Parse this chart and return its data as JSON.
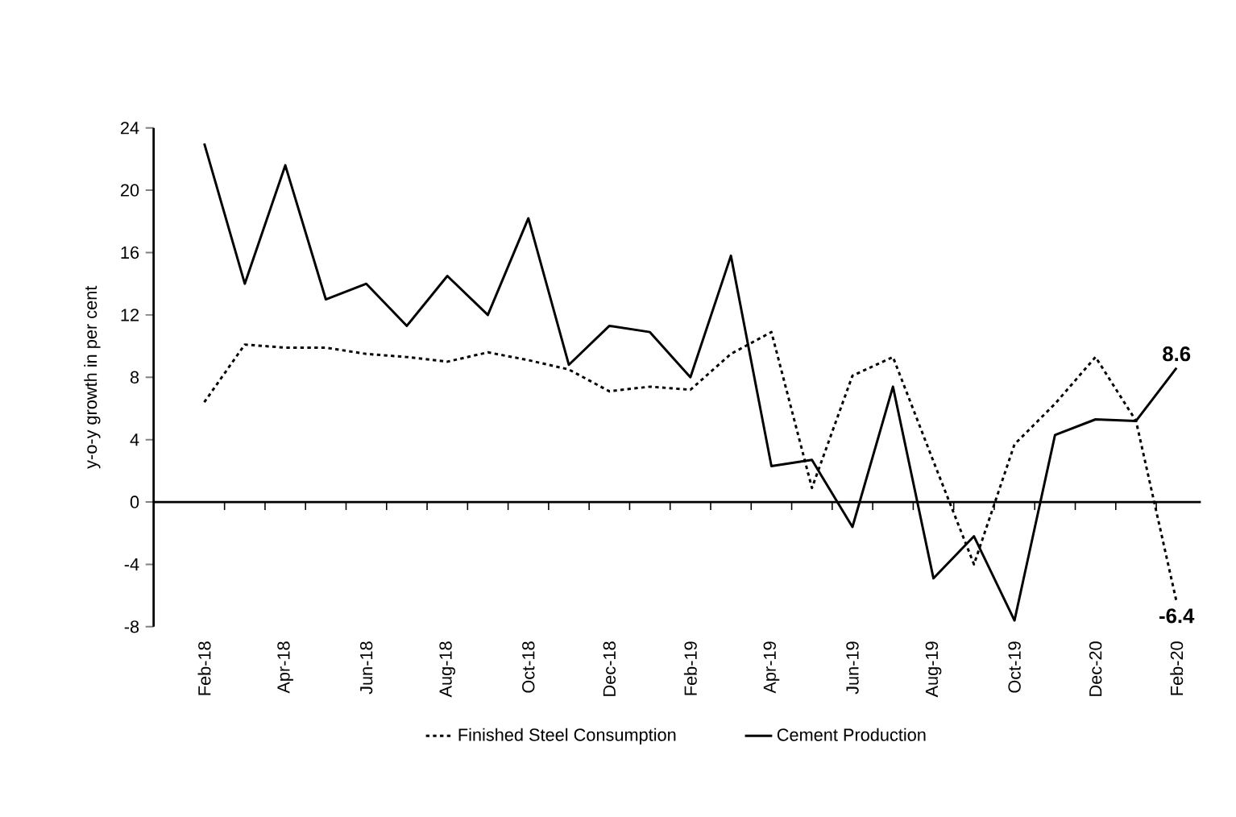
{
  "chart_data": {
    "type": "line",
    "ylabel": "y-o-y growth in per cent",
    "categories": [
      "Feb-18",
      null,
      "Apr-18",
      null,
      "Jun-18",
      null,
      "Aug-18",
      null,
      "Oct-18",
      null,
      "Dec-18",
      null,
      "Feb-19",
      null,
      "Apr-19",
      null,
      "Jun-19",
      null,
      "Aug-19",
      null,
      "Oct-19",
      null,
      "Dec-20",
      null,
      "Feb-20"
    ],
    "series": [
      {
        "name": "Finished Steel Consumption",
        "color": "#000000",
        "line_style": "dotted",
        "values": [
          6.4,
          10.1,
          9.9,
          9.9,
          9.5,
          9.3,
          9.0,
          9.6,
          9.1,
          8.5,
          7.1,
          7.4,
          7.2,
          9.5,
          10.9,
          0.9,
          8.1,
          9.3,
          2.6,
          -4.0,
          3.7,
          6.3,
          9.3,
          5.2,
          -6.4
        ]
      },
      {
        "name": "Cement Production",
        "color": "#000000",
        "line_style": "solid",
        "values": [
          23,
          14,
          21.6,
          13,
          14,
          11.3,
          14.5,
          12,
          18.2,
          8.8,
          11.3,
          10.9,
          8,
          15.8,
          2.3,
          2.7,
          -1.6,
          7.4,
          -4.9,
          -2.2,
          -7.6,
          4.3,
          5.3,
          5.2,
          8.6
        ]
      }
    ],
    "ylim": [
      -8,
      24
    ],
    "yticks": [
      -8,
      -4,
      0,
      4,
      8,
      12,
      16,
      20,
      24
    ],
    "legend": "bottom",
    "marker": "none",
    "annotations": [
      {
        "text": "8.6",
        "x": "Feb-20",
        "y": 8.6
      },
      {
        "text": "-6.4",
        "x": "Feb-20",
        "y": -6.4
      }
    ]
  }
}
